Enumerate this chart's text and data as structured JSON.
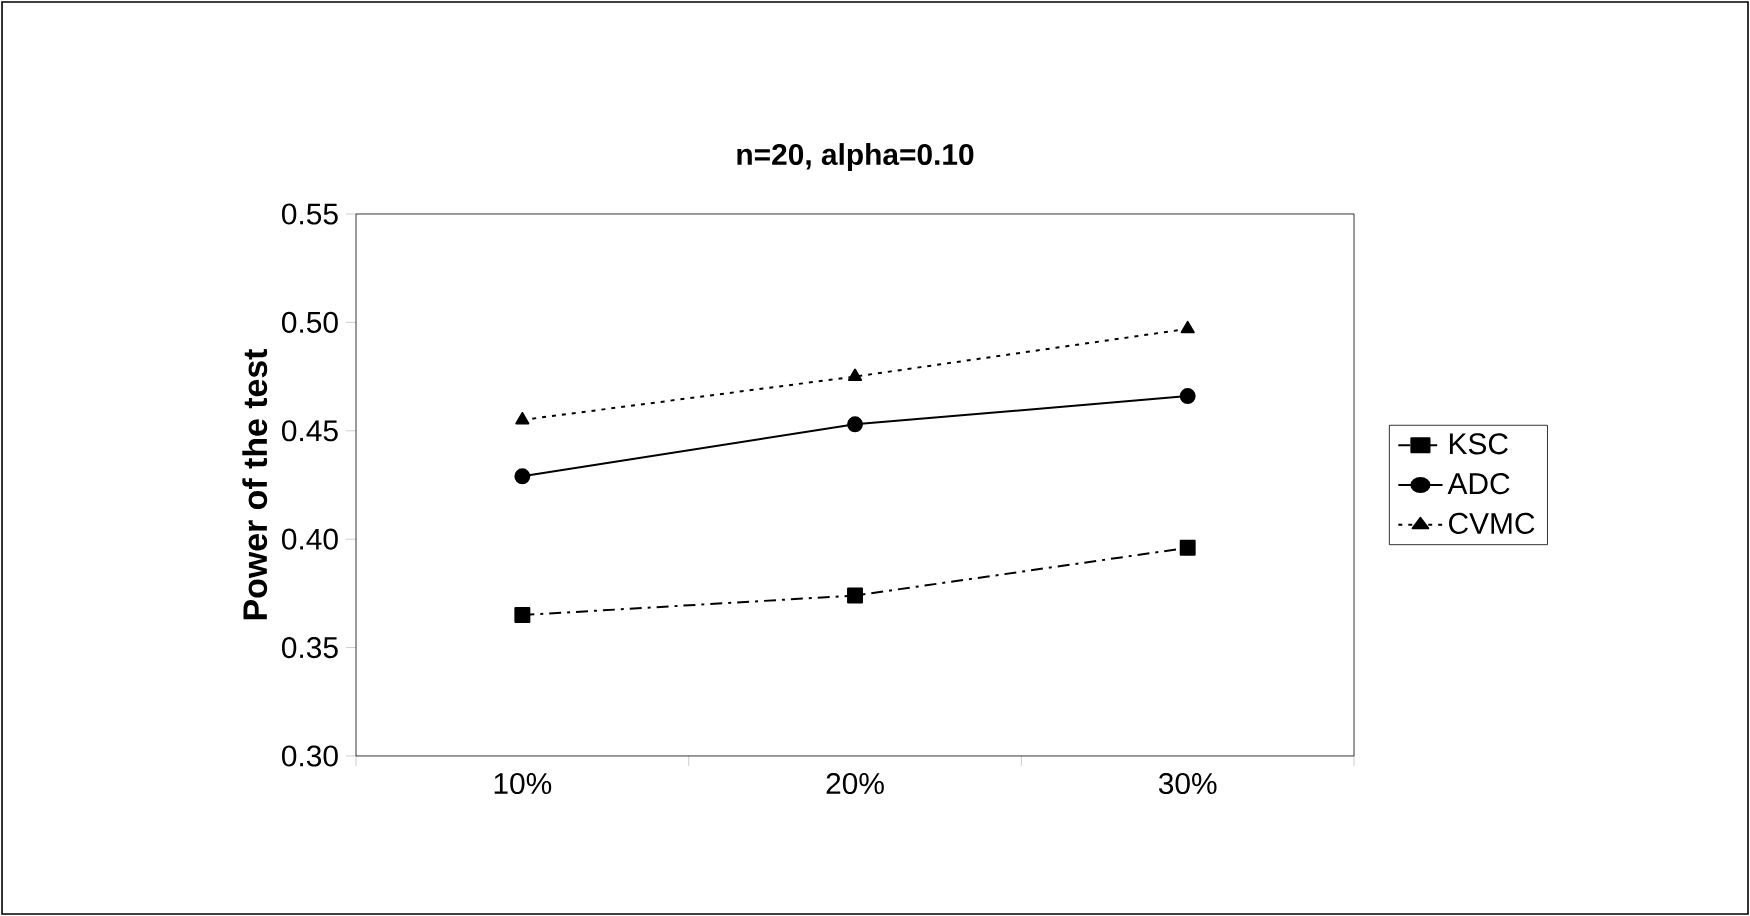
{
  "chart_data": {
    "type": "line",
    "title": "n=20, alpha=0.10",
    "ylabel": "Power of the test",
    "categories": [
      "10%",
      "20%",
      "30%"
    ],
    "series": [
      {
        "name": "KSC",
        "color": "#000000",
        "marker": "square",
        "line_style": "dashed",
        "values": [
          0.365,
          0.374,
          0.396
        ]
      },
      {
        "name": "ADC",
        "color": "#000000",
        "marker": "circle",
        "line_style": "solid",
        "values": [
          0.429,
          0.453,
          0.466
        ]
      },
      {
        "name": "CVMC",
        "color": "#000000",
        "marker": "triangle",
        "line_style": "dotted",
        "values": [
          0.455,
          0.475,
          0.497
        ]
      }
    ],
    "ylim": [
      0.3,
      0.55
    ],
    "yticks": [
      {
        "value": 0.3,
        "label": "0.30"
      },
      {
        "value": 0.35,
        "label": "0.35"
      },
      {
        "value": 0.4,
        "label": "0.40"
      },
      {
        "value": 0.45,
        "label": "0.45"
      },
      {
        "value": 0.5,
        "label": "0.50"
      },
      {
        "value": 0.55,
        "label": "0.55"
      }
    ],
    "grid": false,
    "legend": "right"
  }
}
